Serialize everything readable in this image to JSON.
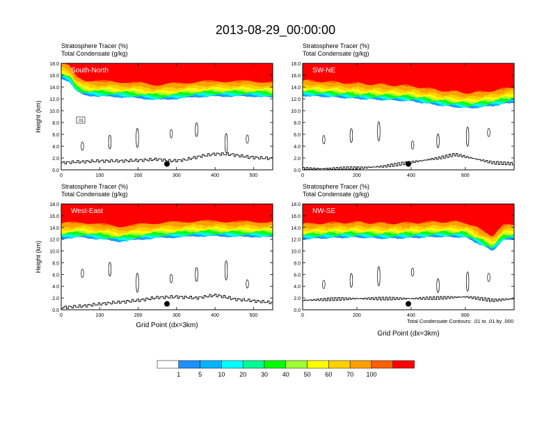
{
  "figure": {
    "title": "2013-08-29_00:00:00",
    "contour_note": "Total Condensate Contours: .01 to .01 by .000",
    "inline_contour_label": ".01"
  },
  "colorbar": {
    "colors": [
      "#ffffff",
      "#1e90ff",
      "#00b4ff",
      "#00ffff",
      "#00fa96",
      "#00ff00",
      "#a0ff32",
      "#ffff00",
      "#ffd000",
      "#ffa000",
      "#ff6000",
      "#ff0000"
    ],
    "labels": [
      "1",
      "5",
      "10",
      "20",
      "30",
      "40",
      "50",
      "60",
      "70",
      "100"
    ]
  },
  "chart_data": [
    {
      "type": "heatmap",
      "panel_label": "South-North",
      "subtitle_lines": [
        "Stratosphere Tracer   (%)",
        "Total Condensate   (g/kg)"
      ],
      "xlabel": "",
      "ylabel": "Height (km)",
      "xlim": [
        0,
        550
      ],
      "ylim": [
        0,
        18
      ],
      "xticks": [
        "0",
        "100",
        "200",
        "300",
        "400",
        "500"
      ],
      "xtick_values": [
        0,
        100,
        200,
        300,
        400,
        500
      ],
      "yticks": [
        "0.0",
        "2.0",
        "4.0",
        "6.0",
        "8.0",
        "10.0",
        "12.0",
        "14.0",
        "16.0",
        "18.0"
      ],
      "marker_x": 275,
      "marker_y": 1.0,
      "tracer_bottom_km": [
        [
          0,
          15.4
        ],
        [
          20,
          15.0
        ],
        [
          40,
          13.2
        ],
        [
          60,
          12.6
        ],
        [
          100,
          12.4
        ],
        [
          150,
          12.3
        ],
        [
          200,
          12.1
        ],
        [
          250,
          11.8
        ],
        [
          300,
          12.0
        ],
        [
          350,
          12.3
        ],
        [
          400,
          12.4
        ],
        [
          450,
          12.4
        ],
        [
          500,
          12.4
        ],
        [
          550,
          12.2
        ]
      ],
      "terrain_km": [
        [
          0,
          1.2
        ],
        [
          30,
          1.3
        ],
        [
          60,
          1.4
        ],
        [
          100,
          1.5
        ],
        [
          150,
          1.5
        ],
        [
          200,
          1.6
        ],
        [
          250,
          1.8
        ],
        [
          280,
          1.5
        ],
        [
          320,
          1.7
        ],
        [
          360,
          2.3
        ],
        [
          400,
          2.7
        ],
        [
          440,
          2.6
        ],
        [
          480,
          2.2
        ],
        [
          520,
          2.0
        ],
        [
          550,
          1.9
        ]
      ]
    },
    {
      "type": "heatmap",
      "panel_label": "SW-NE",
      "subtitle_lines": [
        "Stratosphere Tracer   (%)",
        "Total Condensate   (g/kg)"
      ],
      "xlabel": "",
      "ylabel": "",
      "xlim": [
        0,
        780
      ],
      "ylim": [
        0,
        18
      ],
      "xticks": [
        "0",
        "200",
        "400",
        "600"
      ],
      "xtick_values": [
        0,
        200,
        400,
        600
      ],
      "yticks": [
        "0.0",
        "2.0",
        "4.0",
        "6.0",
        "8.0",
        "10.0",
        "12.0",
        "14.0",
        "16.0",
        "18.0"
      ],
      "marker_x": 390,
      "marker_y": 1.0,
      "tracer_bottom_km": [
        [
          0,
          12.5
        ],
        [
          100,
          12.3
        ],
        [
          200,
          12.0
        ],
        [
          300,
          11.8
        ],
        [
          400,
          11.6
        ],
        [
          500,
          10.9
        ],
        [
          560,
          10.6
        ],
        [
          620,
          10.4
        ],
        [
          700,
          10.8
        ],
        [
          780,
          11.4
        ]
      ],
      "terrain_km": [
        [
          0,
          0.2
        ],
        [
          100,
          0.2
        ],
        [
          200,
          0.3
        ],
        [
          300,
          0.6
        ],
        [
          400,
          1.3
        ],
        [
          500,
          2.0
        ],
        [
          560,
          2.6
        ],
        [
          620,
          2.0
        ],
        [
          700,
          1.2
        ],
        [
          780,
          1.0
        ]
      ]
    },
    {
      "type": "heatmap",
      "panel_label": "West-East",
      "subtitle_lines": [
        "Stratosphere Tracer   (%)",
        "Total Condensate   (g/kg)"
      ],
      "xlabel": "Grid Point (dx=3km)",
      "ylabel": "Height (km)",
      "xlim": [
        0,
        550
      ],
      "ylim": [
        0,
        18
      ],
      "xticks": [
        "0",
        "100",
        "200",
        "300",
        "400",
        "500"
      ],
      "xtick_values": [
        0,
        100,
        200,
        300,
        400,
        500
      ],
      "yticks": [
        "0.0",
        "2.0",
        "4.0",
        "6.0",
        "8.0",
        "10.0",
        "12.0",
        "14.0",
        "16.0",
        "18.0"
      ],
      "marker_x": 275,
      "marker_y": 1.0,
      "tracer_bottom_km": [
        [
          0,
          12.1
        ],
        [
          50,
          12.3
        ],
        [
          100,
          12.0
        ],
        [
          150,
          11.6
        ],
        [
          200,
          11.9
        ],
        [
          250,
          12.2
        ],
        [
          300,
          12.3
        ],
        [
          350,
          12.5
        ],
        [
          400,
          12.5
        ],
        [
          450,
          12.4
        ],
        [
          500,
          12.4
        ],
        [
          550,
          12.3
        ]
      ],
      "terrain_km": [
        [
          0,
          0.4
        ],
        [
          50,
          0.6
        ],
        [
          100,
          1.0
        ],
        [
          150,
          1.3
        ],
        [
          200,
          1.6
        ],
        [
          250,
          2.1
        ],
        [
          300,
          2.2
        ],
        [
          350,
          2.0
        ],
        [
          400,
          2.5
        ],
        [
          450,
          1.8
        ],
        [
          500,
          1.5
        ],
        [
          550,
          1.2
        ]
      ]
    },
    {
      "type": "heatmap",
      "panel_label": "NW-SE",
      "subtitle_lines": [
        "Stratosphere Tracer   (%)",
        "Total Condensate   (g/kg)"
      ],
      "xlabel": "Grid Point (dx=3km)",
      "ylabel": "",
      "xlim": [
        0,
        780
      ],
      "ylim": [
        0,
        18
      ],
      "xticks": [
        "0",
        "200",
        "400",
        "600"
      ],
      "xtick_values": [
        0,
        200,
        400,
        600
      ],
      "yticks": [
        "0.0",
        "2.0",
        "4.0",
        "6.0",
        "8.0",
        "10.0",
        "12.0",
        "14.0",
        "16.0",
        "18.0"
      ],
      "marker_x": 390,
      "marker_y": 1.0,
      "tracer_bottom_km": [
        [
          0,
          12.0
        ],
        [
          100,
          12.2
        ],
        [
          200,
          12.3
        ],
        [
          300,
          12.1
        ],
        [
          400,
          12.2
        ],
        [
          500,
          12.4
        ],
        [
          600,
          12.3
        ],
        [
          650,
          11.2
        ],
        [
          700,
          10.0
        ],
        [
          740,
          11.8
        ],
        [
          780,
          12.0
        ]
      ],
      "terrain_km": [
        [
          0,
          1.6
        ],
        [
          100,
          1.8
        ],
        [
          200,
          1.9
        ],
        [
          300,
          1.9
        ],
        [
          400,
          1.9
        ],
        [
          500,
          2.0
        ],
        [
          600,
          2.2
        ],
        [
          700,
          1.6
        ],
        [
          780,
          1.9
        ]
      ]
    }
  ]
}
